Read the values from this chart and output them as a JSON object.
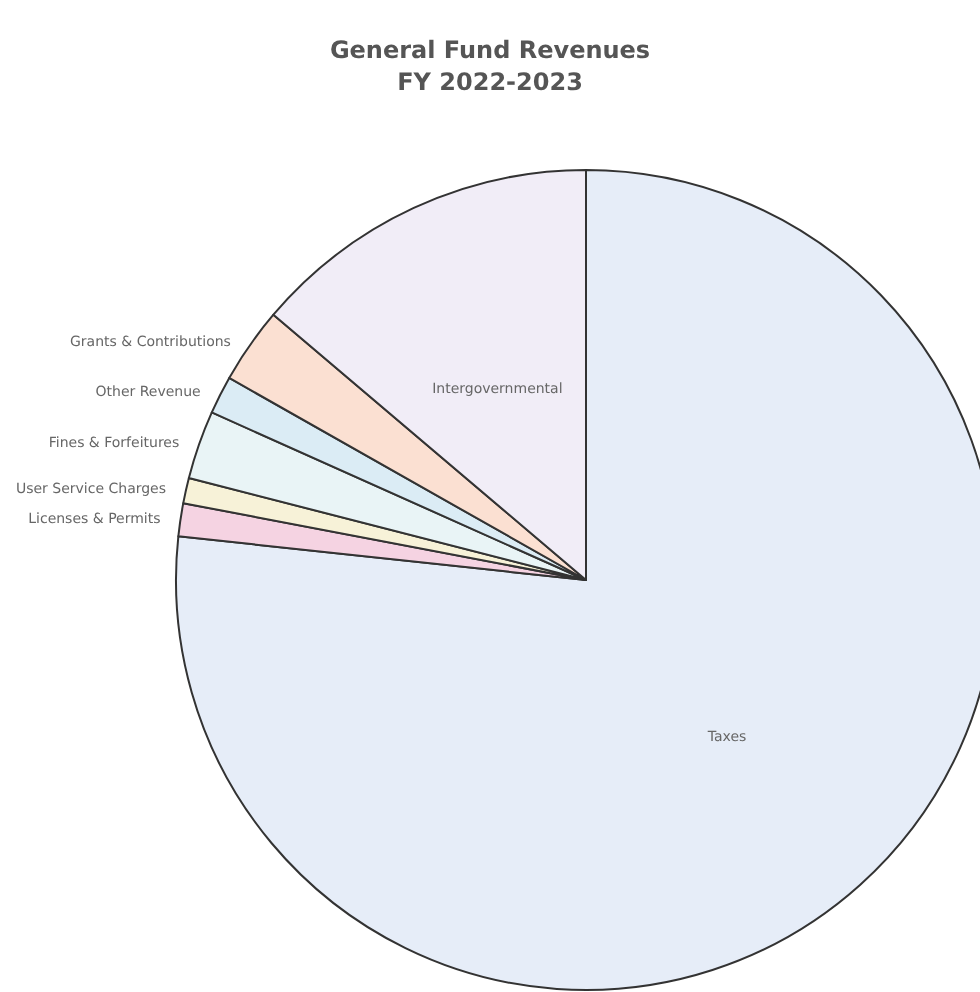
{
  "chart_data": {
    "type": "pie",
    "title": "General Fund Revenues",
    "subtitle": "FY 2022-2023",
    "categories": [
      "Taxes",
      "Licenses & Permits",
      "User Service Charges",
      "Fines & Forfeitures",
      "Other Revenue",
      "Grants & Contributions",
      "Intergovernmental"
    ],
    "values": [
      76.7,
      1.3,
      1.0,
      2.7,
      1.5,
      3.0,
      13.8
    ],
    "colors": [
      "#e6edf8",
      "#f5d3e2",
      "#f7f2d8",
      "#e9f4f6",
      "#dbecf5",
      "#fbe0d2",
      "#f1edf7"
    ],
    "legend": false
  }
}
